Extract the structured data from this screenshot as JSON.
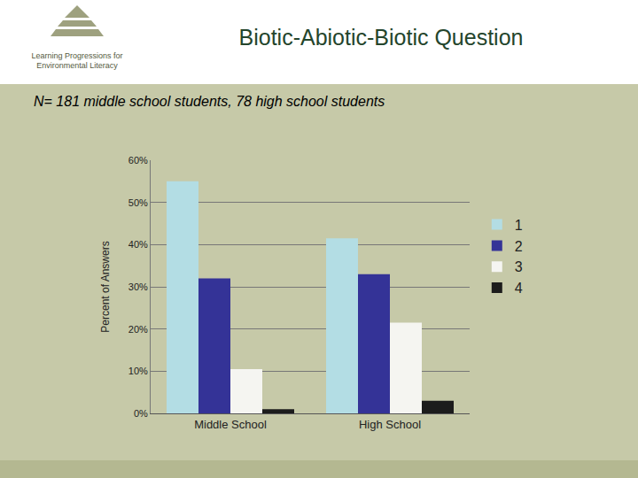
{
  "chart_data": {
    "type": "bar",
    "title": "Biotic-Abiotic-Biotic Question",
    "subtitle": "N= 181 middle school students, 78 high school students",
    "annotations": [
      "Learning Progressions for Environmental Literacy"
    ],
    "y_label": "Percent of Answers",
    "categories": [
      "Middle School",
      "High School"
    ],
    "series": [
      {
        "name": "1",
        "color": "#b3dde4",
        "values": [
          55,
          41.5
        ]
      },
      {
        "name": "2",
        "color": "#343397",
        "values": [
          32,
          33
        ]
      },
      {
        "name": "3",
        "color": "#f5f5f1",
        "values": [
          10.5,
          21.5
        ]
      },
      {
        "name": "4",
        "color": "#1c1c1c",
        "values": [
          1,
          3
        ]
      }
    ],
    "ylim": [
      0,
      60
    ],
    "yticks": [
      {
        "value": 0,
        "label": "0%"
      },
      {
        "value": 10,
        "label": "10%"
      },
      {
        "value": 20,
        "label": "20%"
      },
      {
        "value": 30,
        "label": "30%"
      },
      {
        "value": 40,
        "label": "40%"
      },
      {
        "value": 50,
        "label": "50%"
      },
      {
        "value": 60,
        "label": "60%"
      }
    ],
    "grid": true,
    "legend": "right"
  }
}
